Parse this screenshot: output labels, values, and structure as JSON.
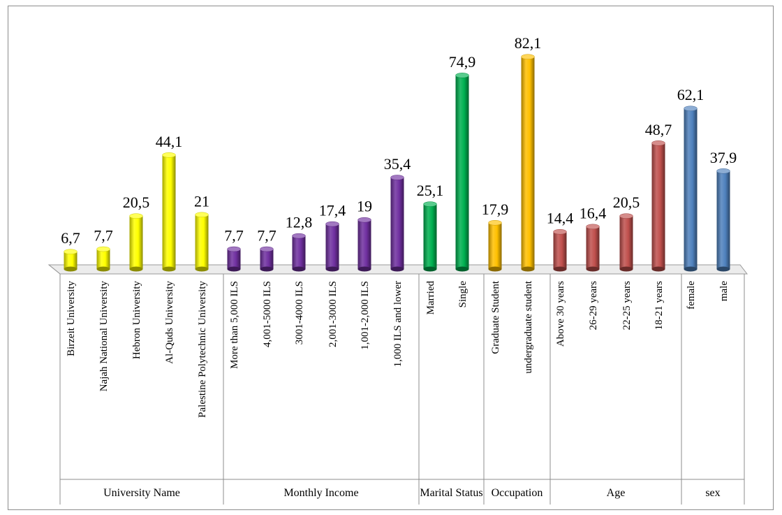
{
  "chart_data": {
    "type": "bar",
    "title": "",
    "ylabel": "",
    "ylim": [
      0,
      90
    ],
    "grid": false,
    "legend": "none",
    "groups": [
      {
        "name": "University Name",
        "color": "#ffff00",
        "categories": [
          "Birzeit University",
          "Najah National University",
          "Hebron University",
          "Al-Quds University",
          "Palestine Polytechnic University"
        ],
        "values": [
          6.7,
          7.7,
          20.5,
          44.1,
          21
        ],
        "labels": [
          "6,7",
          "7,7",
          "20,5",
          "44,1",
          "21"
        ]
      },
      {
        "name": "Monthly Income",
        "color": "#7030a0",
        "categories": [
          "More than 5,000 ILS",
          "4,001-5000 ILS",
          "3001-4000 ILS",
          "2,001-3000 ILS",
          "1,001-2,000 ILS",
          "1,000 ILS and lower"
        ],
        "values": [
          7.7,
          7.7,
          12.8,
          17.4,
          19,
          35.4
        ],
        "labels": [
          "7,7",
          "7,7",
          "12,8",
          "17,4",
          "19",
          "35,4"
        ]
      },
      {
        "name": "Marital Status",
        "color": "#00b050",
        "categories": [
          "Married",
          "Single"
        ],
        "values": [
          25.1,
          74.9
        ],
        "labels": [
          "25,1",
          "74,9"
        ]
      },
      {
        "name": "Occupation",
        "color": "#ffc000",
        "categories": [
          "Graduate Student",
          "undergraduate student"
        ],
        "values": [
          17.9,
          82.1
        ],
        "labels": [
          "17,9",
          "82,1"
        ]
      },
      {
        "name": "Age",
        "color": "#c0504d",
        "categories": [
          "Above 30 years",
          "26-29 years",
          "22-25 years",
          "18-21 years"
        ],
        "values": [
          14.4,
          16.4,
          20.5,
          48.7
        ],
        "labels": [
          "14,4",
          "16,4",
          "20,5",
          "48,7"
        ]
      },
      {
        "name": "sex",
        "color": "#4f81bd",
        "categories": [
          "female",
          "male"
        ],
        "values": [
          62.1,
          37.9
        ],
        "labels": [
          "62,1",
          "37,9"
        ]
      }
    ]
  }
}
